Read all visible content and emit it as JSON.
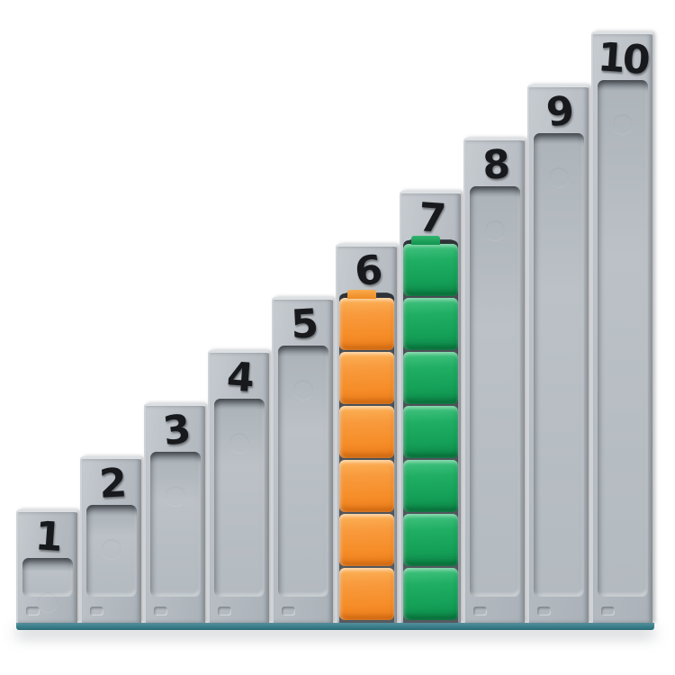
{
  "scene": {
    "columns": [
      {
        "label": "1",
        "cubes": 0,
        "cube_color": null
      },
      {
        "label": "2",
        "cubes": 0,
        "cube_color": null
      },
      {
        "label": "3",
        "cubes": 0,
        "cube_color": null
      },
      {
        "label": "4",
        "cubes": 0,
        "cube_color": null
      },
      {
        "label": "5",
        "cubes": 0,
        "cube_color": null
      },
      {
        "label": "6",
        "cubes": 6,
        "cube_color": "orange"
      },
      {
        "label": "7",
        "cubes": 7,
        "cube_color": "green"
      },
      {
        "label": "8",
        "cubes": 0,
        "cube_color": null
      },
      {
        "label": "9",
        "cubes": 0,
        "cube_color": null
      },
      {
        "label": "10",
        "cubes": 0,
        "cube_color": null
      }
    ],
    "colors": {
      "column_gray": "#B8BEC4",
      "groove_dark": "#5E646B",
      "number_black": "#17191C",
      "cube_orange": "#F7962F",
      "cube_green": "#1BAB60",
      "base_teal": "#44858F",
      "background": "#FFFFFF"
    }
  }
}
